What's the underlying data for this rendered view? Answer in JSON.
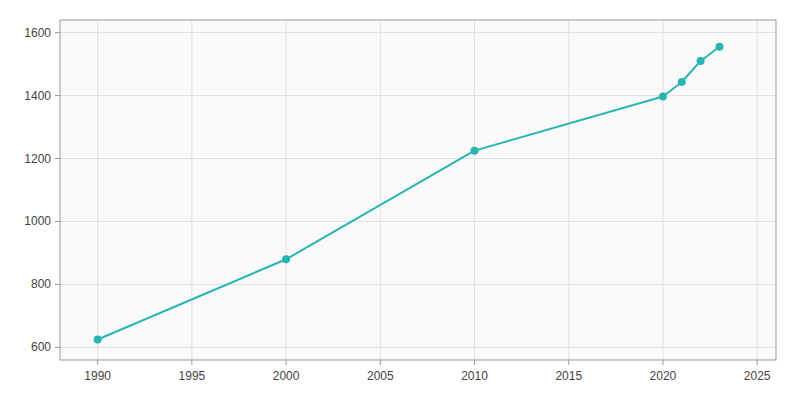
{
  "chart_data": {
    "type": "line",
    "x": [
      1990,
      2000,
      2010,
      2020,
      2021,
      2022,
      2023
    ],
    "values": [
      625,
      880,
      1225,
      1397,
      1443,
      1510,
      1555
    ],
    "color": "#2ab5b5",
    "marker": "circle",
    "xlim": [
      1988,
      2026
    ],
    "ylim": [
      560,
      1640
    ],
    "xticks": [
      1990,
      1995,
      2000,
      2005,
      2010,
      2015,
      2020,
      2025
    ],
    "yticks": [
      600,
      800,
      1000,
      1200,
      1400,
      1600
    ],
    "grid": true
  }
}
